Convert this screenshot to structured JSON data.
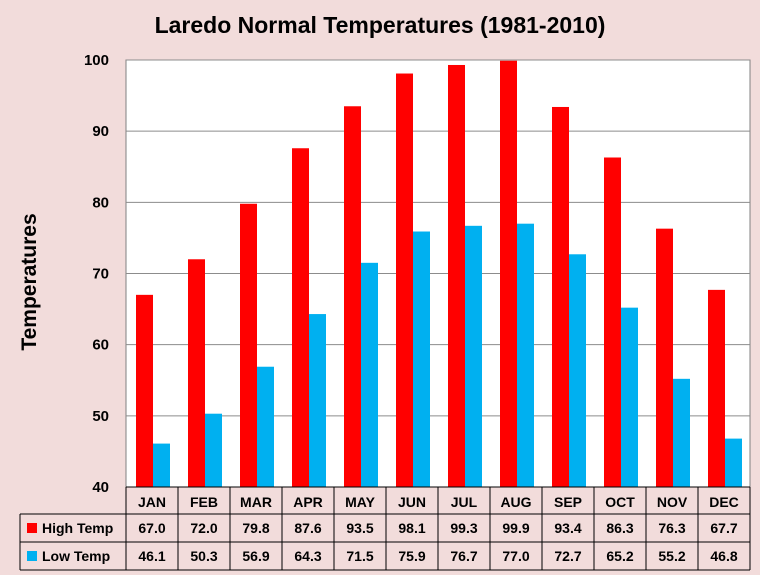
{
  "chart_data": {
    "type": "bar",
    "title": "Laredo Normal Temperatures (1981-2010)",
    "ylabel": "Temperatures",
    "xlabel": "",
    "ylim": [
      40,
      100
    ],
    "yticks": [
      40,
      50,
      60,
      70,
      80,
      90,
      100
    ],
    "grid": true,
    "legend": "data-table",
    "categories": [
      "JAN",
      "FEB",
      "MAR",
      "APR",
      "MAY",
      "JUN",
      "JUL",
      "AUG",
      "SEP",
      "OCT",
      "NOV",
      "DEC"
    ],
    "series": [
      {
        "name": "High Temp",
        "color": "#ff0000",
        "values": [
          67.0,
          72.0,
          79.8,
          87.6,
          93.5,
          98.1,
          99.3,
          99.9,
          93.4,
          86.3,
          76.3,
          67.7
        ]
      },
      {
        "name": "Low Temp",
        "color": "#00b0f0",
        "values": [
          46.1,
          50.3,
          56.9,
          64.3,
          71.5,
          75.9,
          76.7,
          77.0,
          72.7,
          65.2,
          55.2,
          46.8
        ]
      }
    ]
  }
}
